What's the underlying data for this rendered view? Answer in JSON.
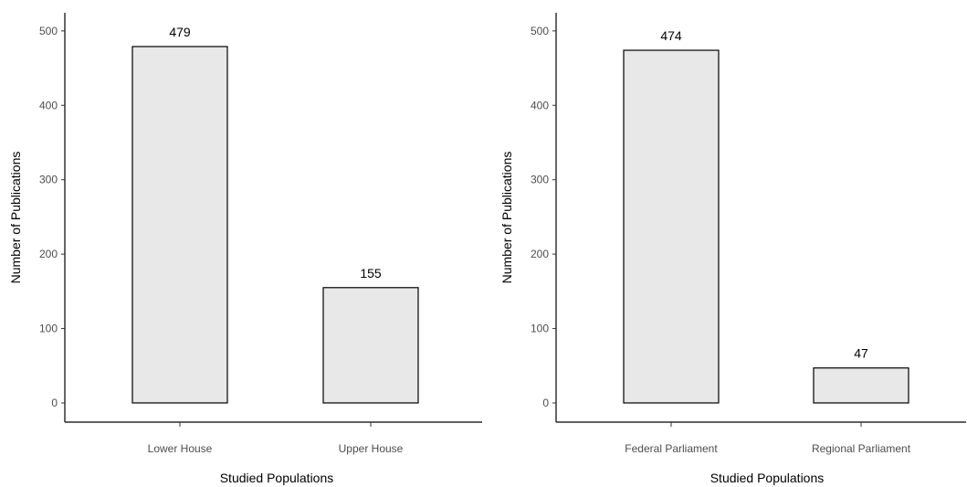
{
  "chart_data": [
    {
      "type": "bar",
      "categories": [
        "Lower House",
        "Upper House"
      ],
      "values": [
        479,
        155
      ],
      "data_labels": [
        "479",
        "155"
      ],
      "xlabel": "Studied Populations",
      "ylabel": "Number of Publications",
      "ylim": [
        0,
        525
      ],
      "yticks": [
        0,
        100,
        200,
        300,
        400,
        500
      ],
      "ytick_labels": [
        "0",
        "100",
        "200",
        "300",
        "400",
        "500"
      ],
      "grid": false,
      "colors": {
        "bar_fill": "#e8e8e8",
        "bar_stroke": "#000000"
      }
    },
    {
      "type": "bar",
      "categories": [
        "Federal Parliament",
        "Regional Parliament"
      ],
      "values": [
        474,
        47
      ],
      "data_labels": [
        "474",
        "47"
      ],
      "xlabel": "Studied Populations",
      "ylabel": "Number of Publications",
      "ylim": [
        0,
        525
      ],
      "yticks": [
        0,
        100,
        200,
        300,
        400,
        500
      ],
      "ytick_labels": [
        "0",
        "100",
        "200",
        "300",
        "400",
        "500"
      ],
      "grid": false,
      "colors": {
        "bar_fill": "#e8e8e8",
        "bar_stroke": "#000000"
      }
    }
  ]
}
